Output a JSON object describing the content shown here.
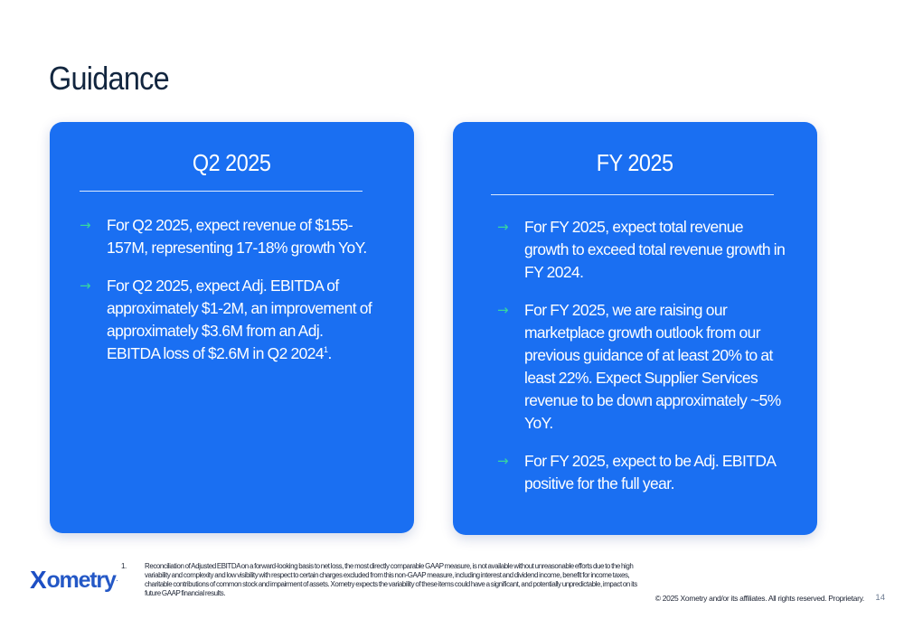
{
  "page": {
    "title": "Guidance",
    "page_number": "14",
    "copyright": "© 2025 Xometry and/or its affiliates. All rights reserved. Proprietary."
  },
  "cards": {
    "q2": {
      "title": "Q2 2025",
      "bullets": [
        {
          "text": "For Q2 2025, expect revenue of $155-157M, representing 17-18% growth YoY."
        },
        {
          "text": "For Q2 2025, expect Adj. EBITDA of approximately $1-2M, an improvement of approximately $3.6M from an Adj. EBITDA loss of $2.6M in Q2 2024",
          "sup": "1",
          "suffix": "."
        }
      ]
    },
    "fy": {
      "title": "FY 2025",
      "bullets": [
        {
          "text": "For FY 2025, expect total revenue growth to exceed total revenue growth in FY 2024."
        },
        {
          "text": "For FY 2025, we are raising our marketplace growth outlook from our previous guidance of at least 20% to at least 22%. Expect Supplier Services revenue to be down approximately ~5% YoY."
        },
        {
          "text": "For FY 2025, expect to be Adj. EBITDA positive for the full year."
        }
      ]
    }
  },
  "bullet_icon": "arrow-right-icon",
  "footnote": {
    "number": "1.",
    "text": "Reconciliation of Adjusted EBITDA on a forward-looking basis to net loss, the most directly comparable GAAP measure, is not available without unreasonable efforts due to the high variability and complexity and low visibility with respect to certain charges excluded from this non-GAAP measure, including interest and dividend income, benefit for income taxes, charitable contributions of common stock and impairment of assets. Xometry expects the variability of these items could have a significant, and potentially unpredictable, impact on its future GAAP financial results."
  },
  "logo": {
    "mark": "X",
    "wordmark": "ometry",
    "tm": "."
  },
  "colors": {
    "card_bg": "#1a6ff2",
    "arrow": "#37d6a0",
    "title": "#12263f",
    "logo": "#2458c6"
  }
}
